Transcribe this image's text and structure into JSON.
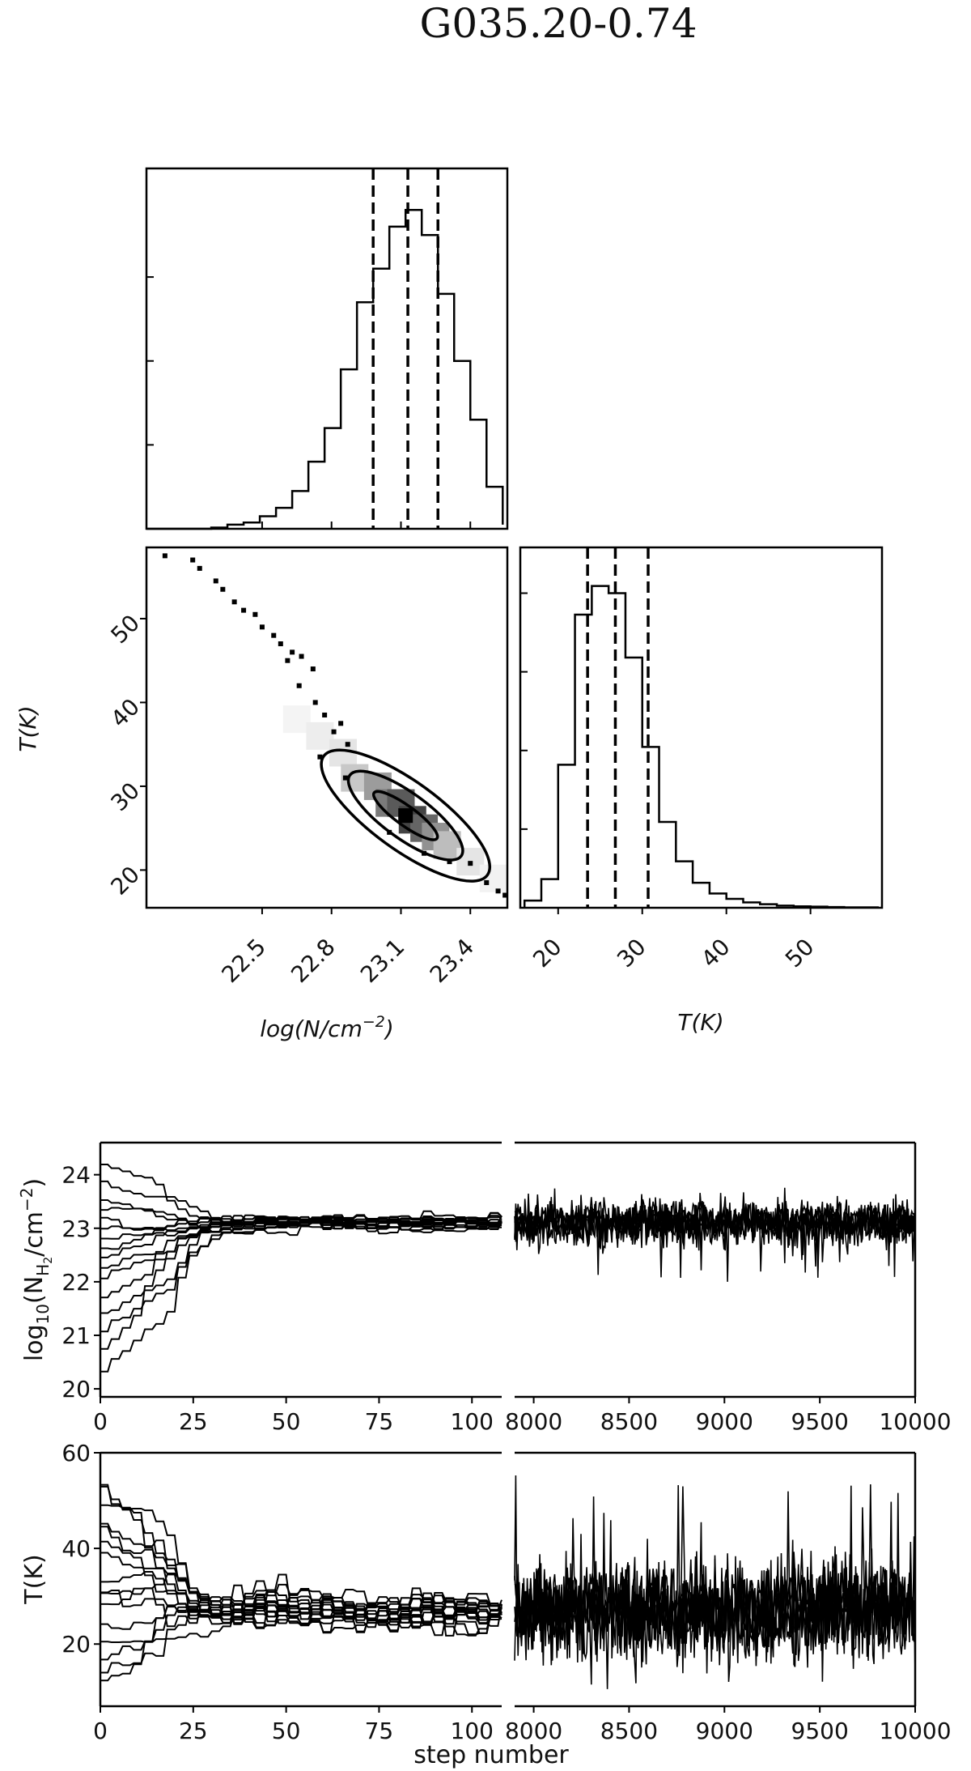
{
  "figure": {
    "title": "G035.20-0.74"
  },
  "chart_data": [
    {
      "type": "histogram",
      "panel": "corner-marginal-logN",
      "xlim": [
        22.0,
        23.56
      ],
      "bins": [
        22.0,
        22.07,
        22.14,
        22.21,
        22.28,
        22.35,
        22.42,
        22.49,
        22.56,
        22.63,
        22.7,
        22.77,
        22.84,
        22.91,
        22.98,
        23.05,
        23.12,
        23.19,
        23.26,
        23.33,
        23.4,
        23.47,
        23.54
      ],
      "values": [
        0,
        0,
        0,
        0,
        0.3,
        1,
        1.5,
        3,
        5,
        9,
        16,
        24,
        38,
        54,
        62,
        72,
        76,
        70,
        56,
        40,
        26,
        10,
        1
      ],
      "quantile_lines": [
        22.98,
        23.13,
        23.26
      ]
    },
    {
      "type": "heatmap",
      "panel": "corner-2d-logN-T",
      "xlabel": "log(N/cm",
      "xlabel_sup": "−2",
      "xlabel_close": ")",
      "ylabel": "T(K)",
      "xlim": [
        22.0,
        23.56
      ],
      "ylim": [
        15.5,
        58.5
      ],
      "xticks": [
        "22.5",
        "22.8",
        "23.1",
        "23.4"
      ],
      "yticks": [
        "20",
        "30",
        "40",
        "50"
      ],
      "density_cells": [
        {
          "x": 22.65,
          "y": 38,
          "v": 0.05
        },
        {
          "x": 22.75,
          "y": 36,
          "v": 0.08
        },
        {
          "x": 22.85,
          "y": 34,
          "v": 0.12
        },
        {
          "x": 22.9,
          "y": 31,
          "v": 0.25
        },
        {
          "x": 23.0,
          "y": 30,
          "v": 0.45
        },
        {
          "x": 23.05,
          "y": 28,
          "v": 0.6
        },
        {
          "x": 23.1,
          "y": 28,
          "v": 0.75
        },
        {
          "x": 23.15,
          "y": 26,
          "v": 0.85
        },
        {
          "x": 23.2,
          "y": 25,
          "v": 0.7
        },
        {
          "x": 23.25,
          "y": 24,
          "v": 0.5
        },
        {
          "x": 23.3,
          "y": 23,
          "v": 0.3
        },
        {
          "x": 23.4,
          "y": 21,
          "v": 0.12
        },
        {
          "x": 23.5,
          "y": 19,
          "v": 0.06
        }
      ],
      "contour_levels": [
        "inner",
        "middle",
        "outer"
      ],
      "scatter": [
        [
          22.08,
          57.5
        ],
        [
          22.2,
          57
        ],
        [
          22.23,
          56
        ],
        [
          22.3,
          54.5
        ],
        [
          22.33,
          53.5
        ],
        [
          22.38,
          52
        ],
        [
          22.42,
          51
        ],
        [
          22.47,
          50.5
        ],
        [
          22.5,
          49
        ],
        [
          22.55,
          48
        ],
        [
          22.58,
          47
        ],
        [
          22.63,
          46
        ],
        [
          22.61,
          45
        ],
        [
          22.67,
          45.5
        ],
        [
          22.72,
          44
        ],
        [
          22.66,
          42
        ],
        [
          22.73,
          40
        ],
        [
          22.77,
          38.5
        ],
        [
          22.84,
          37.5
        ],
        [
          22.81,
          36.5
        ],
        [
          22.87,
          35
        ],
        [
          22.75,
          33.5
        ],
        [
          22.86,
          31
        ],
        [
          23.05,
          24.5
        ],
        [
          23.2,
          22
        ],
        [
          23.31,
          21
        ],
        [
          23.4,
          20.8
        ],
        [
          23.47,
          18.5
        ],
        [
          23.52,
          17.5
        ],
        [
          23.55,
          17
        ]
      ]
    },
    {
      "type": "histogram",
      "panel": "corner-marginal-T",
      "xlabel": "T(K)",
      "xlim": [
        15.5,
        58.5
      ],
      "xticks": [
        "20",
        "30",
        "40",
        "50"
      ],
      "bins": [
        16,
        18,
        20,
        22,
        24,
        26,
        28,
        30,
        32,
        34,
        36,
        38,
        40,
        42,
        44,
        46,
        48,
        50,
        52,
        54,
        56,
        58
      ],
      "values": [
        2,
        8,
        40,
        82,
        90,
        88,
        70,
        45,
        24,
        13,
        7,
        4,
        2.5,
        1.5,
        1,
        0.6,
        0.4,
        0.3,
        0.2,
        0.1,
        0.1
      ],
      "quantile_lines": [
        23.5,
        26.8,
        30.7
      ]
    },
    {
      "type": "line",
      "panel": "trace-logN",
      "ylabel": "log",
      "ylabel_sub": "10",
      "ylabel_rest": "(N",
      "ylabel_subsub": "H",
      "ylabel_subsub2": "2",
      "ylabel_tail": "/cm",
      "ylabel_sup": "−2",
      "ylabel_close": ")",
      "ylim": [
        19.85,
        24.6
      ],
      "yticks": [
        "20",
        "21",
        "22",
        "23",
        "24"
      ],
      "left_xticks": [
        "0",
        "25",
        "50",
        "75",
        "100"
      ],
      "right_xticks": [
        "8000",
        "8500",
        "9000",
        "9500",
        "10000"
      ],
      "left_xlim": [
        0,
        108
      ],
      "right_xlim": [
        7900,
        10000
      ],
      "nwalkers": 16,
      "walker_starts": [
        24.3,
        23.9,
        23.6,
        23.4,
        23.2,
        23.0,
        22.8,
        22.6,
        22.4,
        22.2,
        22.0,
        21.6,
        21.3,
        20.9,
        20.5,
        20.1
      ],
      "converged_mean": 23.1,
      "converged_spread": 0.35
    },
    {
      "type": "line",
      "panel": "trace-T",
      "ylabel": "T(K)",
      "xlabel": "step number",
      "ylim": [
        7,
        60
      ],
      "yticks": [
        "20",
        "40",
        "60"
      ],
      "left_xticks": [
        "0",
        "25",
        "50",
        "75",
        "100"
      ],
      "right_xticks": [
        "8000",
        "8500",
        "9000",
        "9500",
        "10000"
      ],
      "left_xlim": [
        0,
        108
      ],
      "right_xlim": [
        7900,
        10000
      ],
      "nwalkers": 16,
      "walker_starts": [
        57,
        53,
        50,
        47,
        44,
        41,
        38,
        35,
        32,
        29,
        26,
        23,
        20,
        15,
        11,
        9
      ],
      "converged_mean": 27,
      "converged_spread": 9
    }
  ]
}
